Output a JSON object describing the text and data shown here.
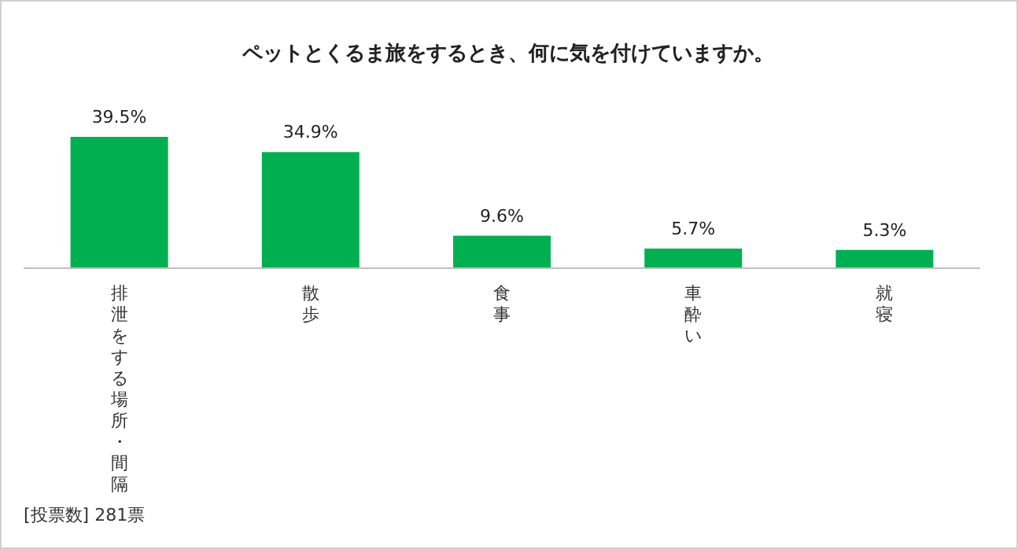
{
  "chart_data": {
    "type": "bar",
    "title": "ペットとくるま旅をするとき、何に気を付けていますか。",
    "categories": [
      "排泄をする場所・間隔",
      "散歩",
      "食事",
      "車酔い",
      "就寝"
    ],
    "values": [
      39.5,
      34.9,
      9.6,
      5.7,
      5.3
    ],
    "value_labels": [
      "39.5%",
      "34.9%",
      "9.6%",
      "5.7%",
      "5.3%"
    ],
    "color": "#00b050",
    "annotations": [
      "[投票数] 281票"
    ]
  }
}
